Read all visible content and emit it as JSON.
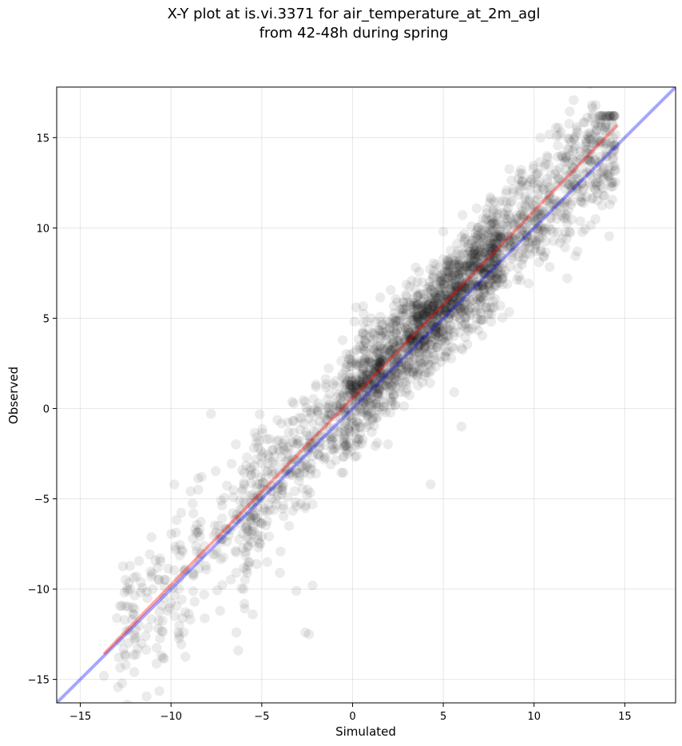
{
  "chart_data": {
    "type": "scatter",
    "title_line1": "X-Y plot at is.vi.3371 for air_temperature_at_2m_agl",
    "title_line2": "from 42-48h during spring",
    "xlabel": "Simulated",
    "ylabel": "Observed",
    "xlim": [
      -16.3,
      17.8
    ],
    "ylim": [
      -16.3,
      17.8
    ],
    "xticks": [
      -15,
      -10,
      -5,
      0,
      5,
      10,
      15
    ],
    "yticks": [
      -15,
      -10,
      -5,
      0,
      5,
      10,
      15
    ],
    "xtick_labels": [
      "−15",
      "−10",
      "−5",
      "0",
      "5",
      "10",
      "15"
    ],
    "ytick_labels": [
      "−15",
      "−10",
      "−5",
      "0",
      "5",
      "10",
      "15"
    ],
    "grid": true,
    "colors": {
      "points": "#000000",
      "fit_line": "#ff0000",
      "identity_line": "#0000ff"
    },
    "points_sample": {
      "description_of_density": "dense cluster along the diagonal",
      "x": [
        -13.7,
        -12.5,
        -12.5,
        -11.4,
        -11.3,
        -10.3,
        -9.8,
        -9.6,
        -9.3,
        -9.2,
        -8.8,
        -8.5,
        -7.8,
        -7.4,
        -6.6,
        -6.4,
        -6.3,
        -6.0,
        -5.8,
        -5.5,
        -4.7,
        -4.0,
        -3.5,
        -3.1,
        -2.6,
        -2.4,
        -2.2,
        -1.8,
        -1.2,
        -0.5,
        0.2,
        0.8,
        1.4,
        2.0,
        2.8,
        3.5,
        4.0,
        4.3,
        5.0,
        5.6,
        6.0,
        6.7,
        7.4,
        8.0,
        8.7,
        9.3,
        10.0,
        10.8,
        11.5,
        12.2,
        12.8,
        13.4,
        14.2
      ],
      "y": [
        -14.8,
        -14.2,
        -13.7,
        -12.6,
        -10.5,
        -9.5,
        -11.5,
        -12.4,
        -12.4,
        -8.9,
        -7.2,
        -4.5,
        -0.3,
        -6.5,
        -5.8,
        -12.4,
        -13.4,
        -10.0,
        -9.1,
        -11.4,
        -8.5,
        -9.1,
        -6.5,
        -10.1,
        -12.4,
        -12.5,
        -9.8,
        -2.1,
        -3.1,
        -1.8,
        5.6,
        1.5,
        3.0,
        1.5,
        5.9,
        4.3,
        2.0,
        -4.2,
        9.8,
        0.9,
        -1.0,
        8.2,
        10.0,
        9.4,
        9.0,
        11.2,
        12.5,
        13.5,
        14.0,
        15.0,
        13.8,
        15.8,
        13.0
      ]
    },
    "fit_line": {
      "x": [
        -13.7,
        14.6
      ],
      "y": [
        -13.6,
        15.7
      ]
    },
    "identity_line": {
      "x": [
        -16.3,
        17.8
      ],
      "y": [
        -16.3,
        17.8
      ]
    }
  }
}
